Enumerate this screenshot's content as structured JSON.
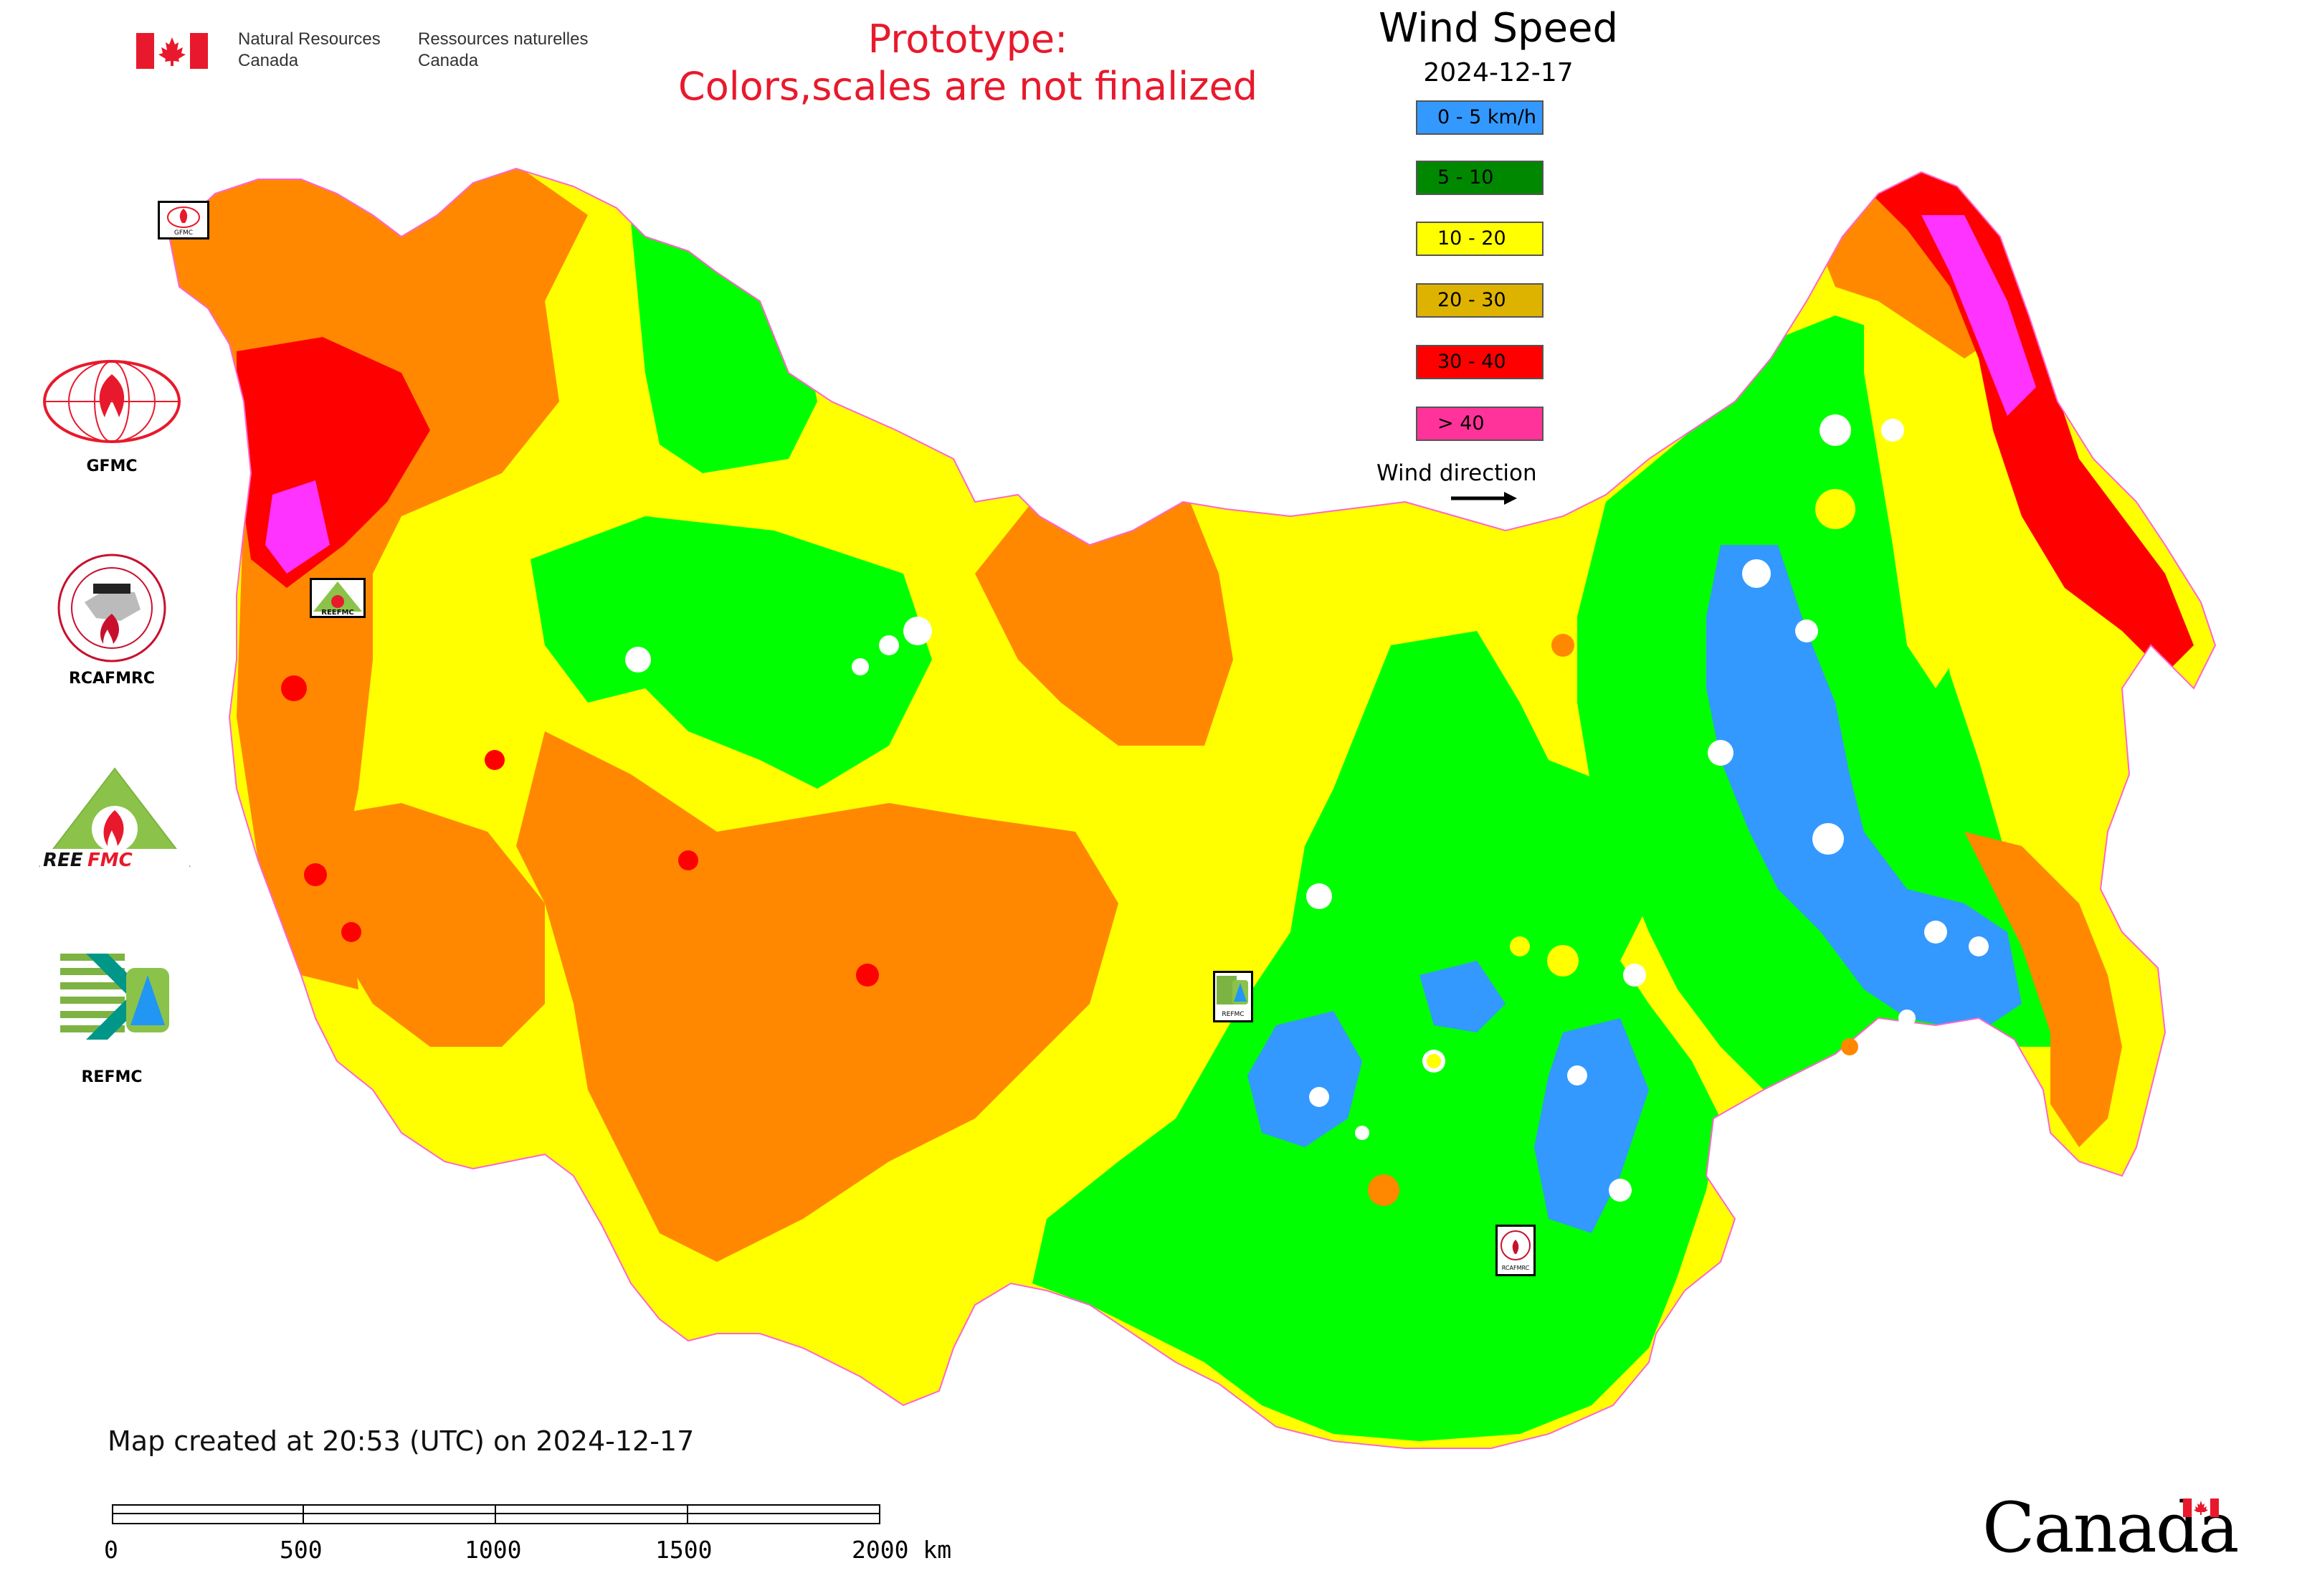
{
  "header": {
    "agency_en": [
      "Natural Resources",
      "Canada"
    ],
    "agency_fr": [
      "Ressources naturelles",
      "Canada"
    ],
    "prototype_lines": [
      "Prototype:",
      "Colors,scales are not finalized"
    ]
  },
  "legend": {
    "title": "Wind Speed",
    "date": "2024-12-17",
    "classes": [
      {
        "label": "0 - 5 km/h",
        "color": "#3399ff"
      },
      {
        "label": "5 - 10",
        "color": "#008800"
      },
      {
        "label": "10 - 20",
        "color": "#ffff00"
      },
      {
        "label": "20 - 30",
        "color": "#ddb300"
      },
      {
        "label": "30 - 40",
        "color": "#ff0000"
      },
      {
        "label": "> 40",
        "color": "#ff3399"
      }
    ],
    "wind_direction_label": "Wind direction"
  },
  "logos": [
    {
      "name": "GFMC",
      "label": "GFMC"
    },
    {
      "name": "RCAFMRC",
      "label": "RCAFMRC"
    },
    {
      "name": "REEFMC",
      "label": "REEFMC"
    },
    {
      "name": "REFMC",
      "label": "REFMC"
    }
  ],
  "map_markers": [
    {
      "name": "GFMC"
    },
    {
      "name": "REEFMC"
    },
    {
      "name": "REFMC"
    },
    {
      "name": "RCAFMRC"
    }
  ],
  "footer": {
    "created_text": "Map created at 20:53 (UTC) on 2024-12-17",
    "scale_labels": [
      "0",
      "500",
      "1000",
      "1500",
      "2000 km"
    ],
    "canada_wordmark": "Canada"
  },
  "colors": {
    "blue": "#3399ff",
    "green": "#00ff00",
    "yellow": "#ffff00",
    "orange": "#ff8800",
    "red": "#ff0000",
    "magenta": "#ff33ff",
    "prototype_text": "#e8192c"
  }
}
